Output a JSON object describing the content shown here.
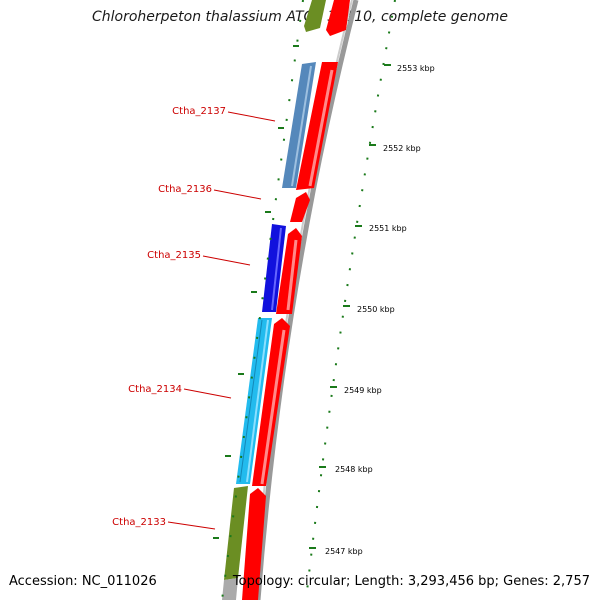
{
  "title": "Chloroherpeton thalassium ATCC 35110, complete genome",
  "accession": "Accession: NC_011026",
  "summary": "Topology: circular; Length: 3,293,456 bp; Genes: 2,757",
  "ticks": [
    "2553 kbp",
    "2552 kbp",
    "2551 kbp",
    "2550 kbp",
    "2549 kbp",
    "2548 kbp",
    "2547 kbp"
  ],
  "genes": [
    {
      "label": "Ctha_2137",
      "color": "#5588bb"
    },
    {
      "label": "Ctha_2136",
      "color": "#ff0000"
    },
    {
      "label": "Ctha_2135",
      "color": "#1111dd"
    },
    {
      "label": "Ctha_2134",
      "color": "#22bbee"
    },
    {
      "label": "Ctha_2133",
      "color": "#6b8e23"
    }
  ],
  "colors": {
    "forward_strand": "#ff0000",
    "label_text": "#cc0000",
    "tick": "#1a7a1a",
    "backbone": "#888888"
  }
}
